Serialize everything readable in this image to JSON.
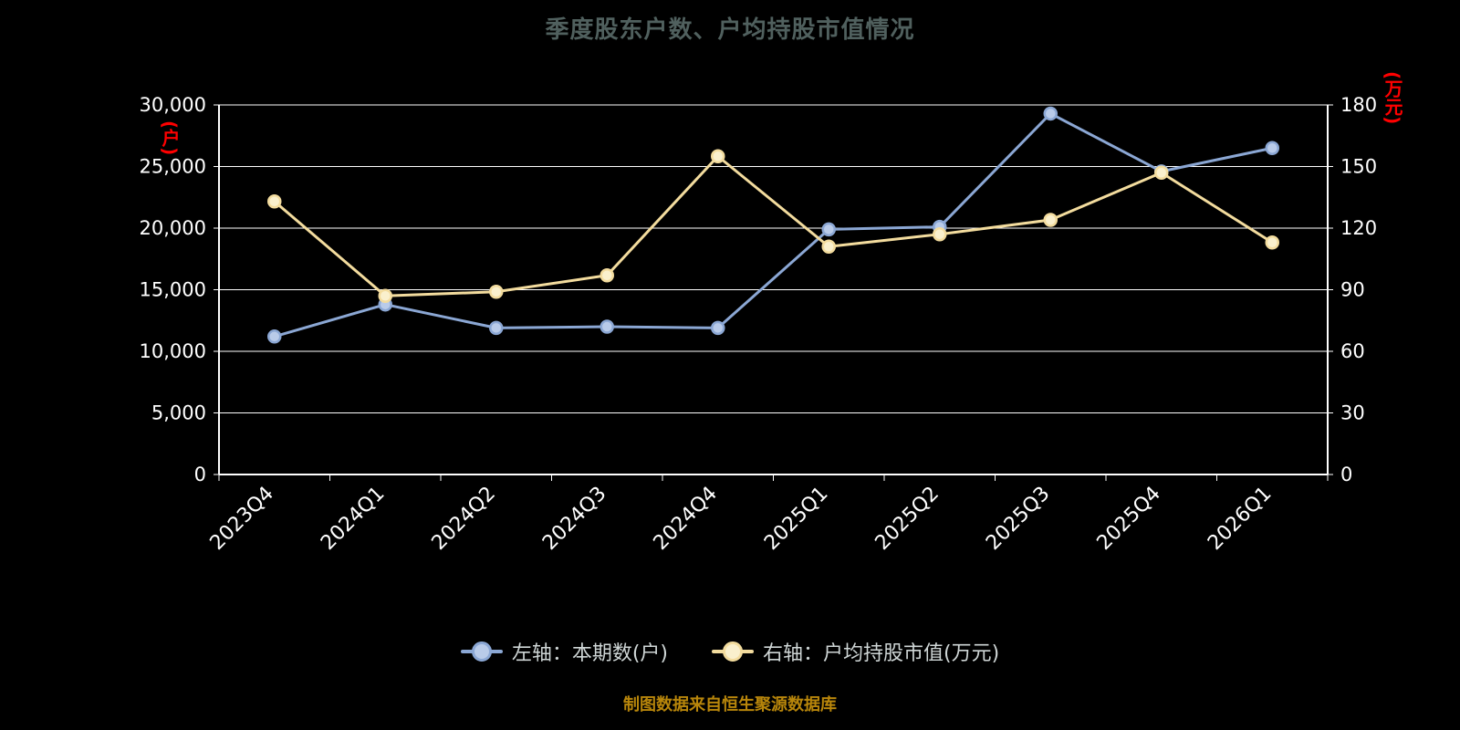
{
  "title": "季度股东户数、户均持股市值情况",
  "footer": "制图数据来自恒生聚源数据库",
  "left_axis_unit": "(户)",
  "right_axis_unit": "(万元)",
  "colors": {
    "background": "#000000",
    "axis": "#ffffff",
    "grid": "#ffffff",
    "tick_label": "#ffffff",
    "title": "#50605e",
    "unit_label": "#ff0000",
    "footer": "#b8860b",
    "series_left_line": "#8ba7d4",
    "series_left_fill": "#b9cbe9",
    "series_right_line": "#f3dc9e",
    "series_right_fill": "#faf0cd"
  },
  "legend": {
    "items": [
      {
        "label": "左轴：本期数(户)",
        "color": "#8ba7d4",
        "fill": "#b9cbe9"
      },
      {
        "label": "右轴：户均持股市值(万元)",
        "color": "#f3dc9e",
        "fill": "#faf0cd"
      }
    ]
  },
  "chart_data": {
    "type": "line",
    "categories": [
      "2023Q4",
      "2024Q1",
      "2024Q2",
      "2024Q3",
      "2024Q4",
      "2025Q1",
      "2025Q2",
      "2025Q3",
      "2025Q4",
      "2026Q1"
    ],
    "series": [
      {
        "name": "左轴：本期数(户)",
        "axis": "left",
        "color": "#8ba7d4",
        "marker_fill": "#b9cbe9",
        "values": [
          11200,
          13800,
          11900,
          12000,
          11900,
          19900,
          20100,
          29300,
          24600,
          26500
        ]
      },
      {
        "name": "右轴：户均持股市值(万元)",
        "axis": "right",
        "color": "#f3dc9e",
        "marker_fill": "#faf0cd",
        "values": [
          133,
          87,
          89,
          97,
          155,
          111,
          117,
          124,
          147,
          113
        ]
      }
    ],
    "left_axis": {
      "ylim": [
        0,
        30000
      ],
      "ticks": [
        0,
        5000,
        10000,
        15000,
        20000,
        25000,
        30000
      ]
    },
    "right_axis": {
      "ylim": [
        0,
        180
      ],
      "ticks": [
        0,
        30,
        60,
        90,
        120,
        150,
        180
      ]
    },
    "grid": true,
    "legend_position": "bottom"
  }
}
